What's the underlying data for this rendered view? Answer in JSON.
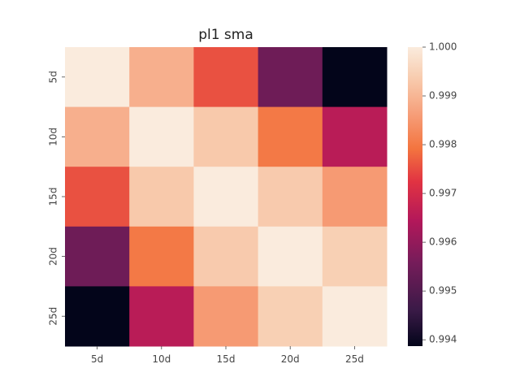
{
  "chart_data": {
    "type": "heatmap",
    "title": "pl1 sma",
    "xlabel": "",
    "ylabel": "",
    "x_categories": [
      "5d",
      "10d",
      "15d",
      "20d",
      "25d"
    ],
    "y_categories": [
      "5d",
      "10d",
      "15d",
      "20d",
      "25d"
    ],
    "values": [
      [
        1.0,
        0.9989,
        0.99755,
        0.99545,
        0.99387
      ],
      [
        0.9989,
        1.0,
        0.99932,
        0.998,
        0.99655
      ],
      [
        0.99755,
        0.99932,
        1.0,
        0.99934,
        0.99855
      ],
      [
        0.99545,
        0.998,
        0.99934,
        1.0,
        0.99944
      ],
      [
        0.99387,
        0.99655,
        0.99855,
        0.99944,
        1.0
      ]
    ],
    "colorbar": {
      "min": 0.99387,
      "max": 1.0,
      "ticks": [
        "0.994",
        "0.995",
        "0.996",
        "0.997",
        "0.998",
        "0.999",
        "1.000"
      ],
      "tick_values": [
        0.994,
        0.995,
        0.996,
        0.997,
        0.998,
        0.999,
        1.0
      ],
      "colormap": "rocket"
    },
    "grid": false,
    "legend": "colorbar-right"
  }
}
